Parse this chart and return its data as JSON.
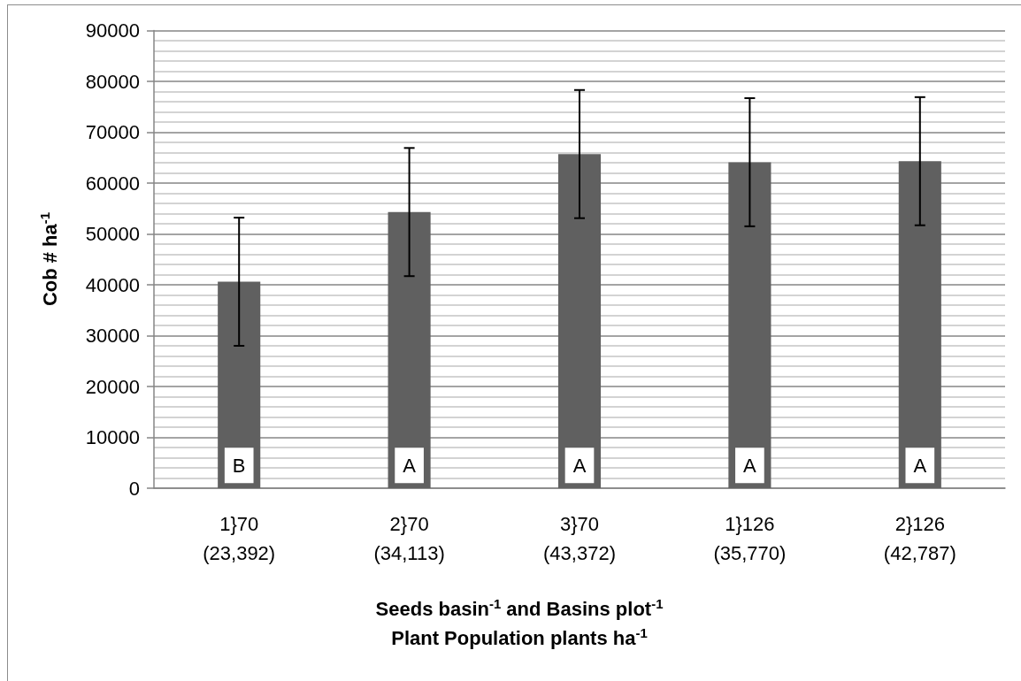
{
  "chart_data": {
    "type": "bar",
    "categories": [
      "1}70\n(23,392)",
      "2}70\n(34,113)",
      "3}70\n(43,372)",
      "1}126\n(35,770)",
      "2}126\n(42,787)"
    ],
    "values": [
      40600,
      54300,
      65700,
      64100,
      64300
    ],
    "errors": [
      12600,
      12600,
      12600,
      12600,
      12600
    ],
    "color": "#606060",
    "xlabel": "Seeds basin$^{-1}$ and Basins plot$^{-1}$\nPlant Population plants ha$^{-1}$",
    "ylabel": "Cob # ha$^{-1}$",
    "ylim": [
      0,
      90000
    ],
    "yticks": [
      0,
      {
        "value": 2000,
        "label": null
      },
      {
        "value": 4000,
        "label": null
      },
      {
        "value": 6000,
        "label": null
      },
      {
        "value": 8000,
        "label": null
      },
      10000,
      {
        "value": 12000,
        "label": null
      },
      {
        "value": 14000,
        "label": null
      },
      {
        "value": 16000,
        "label": null
      },
      {
        "value": 18000,
        "label": null
      },
      20000,
      {
        "value": 22000,
        "label": null
      },
      {
        "value": 24000,
        "label": null
      },
      {
        "value": 26000,
        "label": null
      },
      {
        "value": 28000,
        "label": null
      },
      30000,
      {
        "value": 32000,
        "label": null
      },
      {
        "value": 34000,
        "label": null
      },
      {
        "value": 36000,
        "label": null
      },
      {
        "value": 38000,
        "label": null
      },
      40000,
      {
        "value": 42000,
        "label": null
      },
      {
        "value": 44000,
        "label": null
      },
      {
        "value": 46000,
        "label": null
      },
      {
        "value": 48000,
        "label": null
      },
      50000,
      {
        "value": 52000,
        "label": null
      },
      {
        "value": 54000,
        "label": null
      },
      {
        "value": 56000,
        "label": null
      },
      {
        "value": 58000,
        "label": null
      },
      60000,
      {
        "value": 62000,
        "label": null
      },
      {
        "value": 64000,
        "label": null
      },
      {
        "value": 66000,
        "label": null
      },
      {
        "value": 68000,
        "label": null
      },
      70000,
      {
        "value": 72000,
        "label": null
      },
      {
        "value": 74000,
        "label": null
      },
      {
        "value": 76000,
        "label": null
      },
      {
        "value": 78000,
        "label": null
      },
      80000,
      {
        "value": 82000,
        "label": null
      },
      {
        "value": 84000,
        "label": null
      },
      {
        "value": 86000,
        "label": null
      },
      {
        "value": 88000,
        "label": null
      },
      90000
    ],
    "annotations": [
      {
        "text": "B",
        "x": "1}70\n(23,392)",
        "y": 4500
      },
      {
        "text": "A",
        "x": "2}70\n(34,113)",
        "y": 4500
      },
      {
        "text": "A",
        "x": "3}70\n(43,372)",
        "y": 4500
      },
      {
        "text": "A",
        "x": "1}126\n(35,770)",
        "y": 4500
      },
      {
        "text": "A",
        "x": "2}126\n(42,787)",
        "y": 4500
      }
    ],
    "grid": "y"
  }
}
